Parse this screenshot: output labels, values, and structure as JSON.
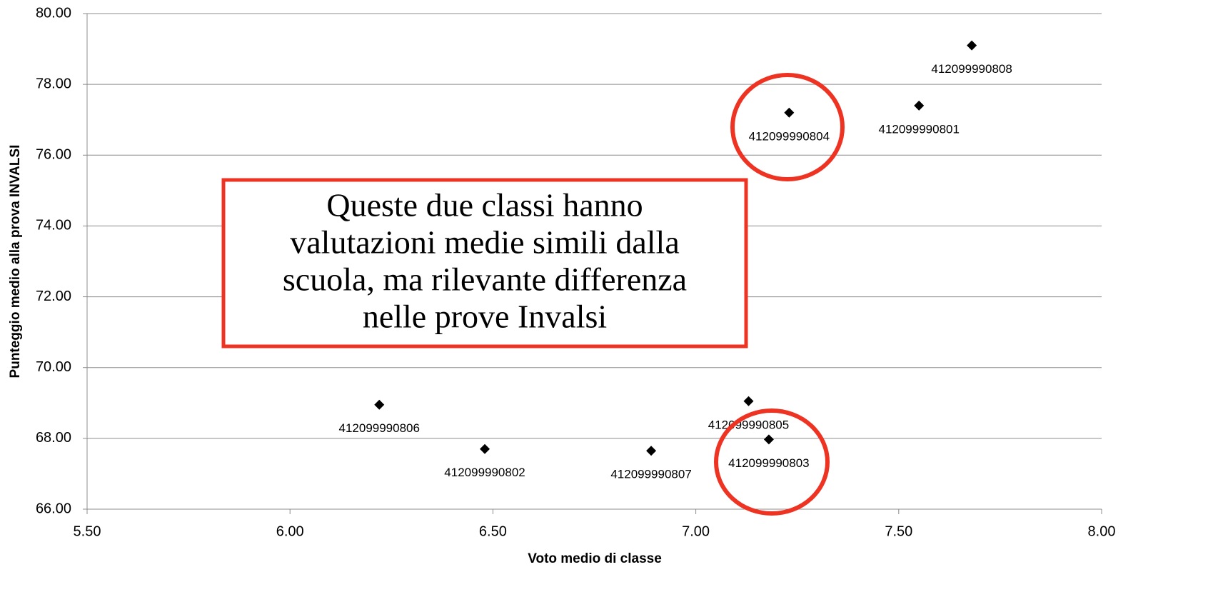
{
  "chart_data": {
    "type": "scatter",
    "xlabel": "Voto medio di classe",
    "ylabel": "Punteggio medio alla prova INVALSI",
    "x": [
      7.68,
      7.23,
      7.55,
      6.22,
      6.48,
      6.89,
      7.13,
      7.18
    ],
    "values": [
      79.1,
      77.2,
      77.4,
      68.95,
      67.7,
      67.65,
      69.05,
      67.97
    ],
    "labels": [
      "412099990808",
      "412099990804",
      "412099990801",
      "412099990806",
      "412099990802",
      "412099990807",
      "412099990805",
      "412099990803"
    ],
    "color": "#000000",
    "xlim": [
      5.5,
      8.0
    ],
    "xticks": [
      {
        "value": 5.5,
        "label": "5.50"
      },
      {
        "value": 6.0,
        "label": "6.00"
      },
      {
        "value": 6.5,
        "label": "6.50"
      },
      {
        "value": 7.0,
        "label": "7.00"
      },
      {
        "value": 7.5,
        "label": "7.50"
      },
      {
        "value": 8.0,
        "label": "8.00"
      }
    ],
    "ylim": [
      66,
      80
    ],
    "yticks": [
      {
        "value": 66,
        "label": "66.00"
      },
      {
        "value": 68,
        "label": "68.00"
      },
      {
        "value": 70,
        "label": "70.00"
      },
      {
        "value": 72,
        "label": "72.00"
      },
      {
        "value": 74,
        "label": "74.00"
      },
      {
        "value": 76,
        "label": "76.00"
      },
      {
        "value": 78,
        "label": "78.00"
      },
      {
        "value": 80,
        "label": "80.00"
      }
    ],
    "grid": true,
    "annotation": [
      "Queste due classi hanno",
      "valutazioni medie simili dalla",
      "scuola, ma rilevante differenza",
      "nelle prove Invalsi"
    ]
  }
}
